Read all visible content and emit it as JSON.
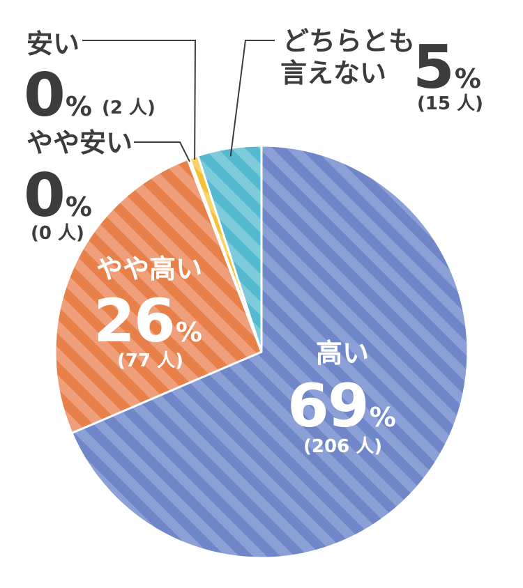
{
  "chart_data": {
    "type": "pie",
    "start_angle_deg": 0,
    "direction": "clockwise",
    "slices": [
      {
        "label": "高い",
        "percent": "69",
        "count": "(206 人)",
        "value": 206,
        "color": "#6f86c8",
        "stripe": "#8ba0d6"
      },
      {
        "label": "やや高い",
        "percent": "26",
        "count": "(77 人)",
        "value": 77,
        "color": "#e8804a",
        "stripe": "#efa07a"
      },
      {
        "label": "やや安い",
        "percent": "0",
        "count": "(0 人)",
        "value": 0,
        "color": "#f3c234",
        "stripe": "#f7d56a"
      },
      {
        "label": "安い",
        "percent": "0",
        "count": "(2 人)",
        "value": 2,
        "color": "#f3c234",
        "stripe": "#f7d56a"
      },
      {
        "label": "どちらとも言えない",
        "label_line1": "どちらとも",
        "label_line2": "言えない",
        "percent": "5",
        "count": "(15 人)",
        "value": 15,
        "color": "#55b9cf",
        "stripe": "#7ecbdc"
      }
    ],
    "percent_sign": "%"
  }
}
